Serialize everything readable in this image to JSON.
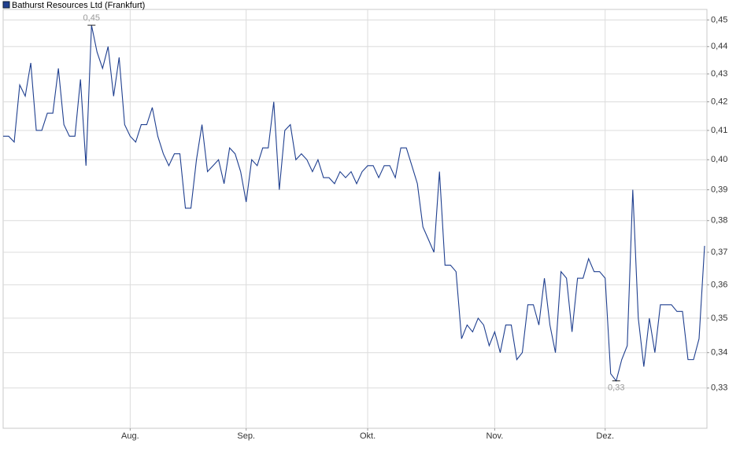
{
  "chart_data": {
    "type": "line",
    "categories": [
      null,
      null,
      null,
      null,
      null,
      null,
      null,
      null,
      null,
      null,
      null,
      null,
      null,
      null,
      null,
      null,
      null,
      null,
      null,
      null,
      null,
      null,
      null,
      "Aug.",
      null,
      null,
      null,
      null,
      null,
      null,
      null,
      null,
      null,
      null,
      null,
      null,
      null,
      null,
      null,
      null,
      null,
      null,
      null,
      null,
      "Sep.",
      null,
      null,
      null,
      null,
      null,
      null,
      null,
      null,
      null,
      null,
      null,
      null,
      null,
      null,
      null,
      null,
      null,
      null,
      null,
      null,
      null,
      "Okt.",
      null,
      null,
      null,
      null,
      null,
      null,
      null,
      null,
      null,
      null,
      null,
      null,
      null,
      null,
      null,
      null,
      null,
      null,
      null,
      null,
      null,
      null,
      "Nov.",
      null,
      null,
      null,
      null,
      null,
      null,
      null,
      null,
      null,
      null,
      null,
      null,
      null,
      null,
      null,
      null,
      null,
      null,
      null,
      "Dez.",
      null,
      null,
      null,
      null,
      null,
      null,
      null,
      null,
      null,
      null,
      null,
      null,
      null,
      null,
      null,
      null,
      null,
      null
    ],
    "series": [
      {
        "name": "Bathurst Resources Ltd (Frankfurt)",
        "color": "#1f3f8f",
        "values": [
          0.408,
          0.408,
          0.406,
          0.426,
          0.422,
          0.434,
          0.41,
          0.41,
          0.416,
          0.416,
          0.432,
          0.412,
          0.408,
          0.408,
          0.428,
          0.398,
          0.448,
          0.438,
          0.432,
          0.44,
          0.422,
          0.436,
          0.412,
          0.408,
          0.406,
          0.412,
          0.412,
          0.418,
          0.408,
          0.402,
          0.398,
          0.402,
          0.402,
          0.384,
          0.384,
          0.4,
          0.412,
          0.396,
          0.398,
          0.4,
          0.392,
          0.404,
          0.402,
          0.396,
          0.386,
          0.4,
          0.398,
          0.404,
          0.404,
          0.42,
          0.39,
          0.41,
          0.412,
          0.4,
          0.402,
          0.4,
          0.396,
          0.4,
          0.394,
          0.394,
          0.392,
          0.396,
          0.394,
          0.396,
          0.392,
          0.396,
          0.398,
          0.398,
          0.394,
          0.398,
          0.398,
          0.394,
          0.404,
          0.404,
          0.398,
          0.392,
          0.378,
          0.374,
          0.37,
          0.396,
          0.366,
          0.366,
          0.364,
          0.344,
          0.348,
          0.346,
          0.35,
          0.348,
          0.342,
          0.346,
          0.34,
          0.348,
          0.348,
          0.338,
          0.34,
          0.354,
          0.354,
          0.348,
          0.362,
          0.348,
          0.34,
          0.364,
          0.362,
          0.346,
          0.362,
          0.362,
          0.368,
          0.364,
          0.364,
          0.362,
          0.334,
          0.332,
          0.338,
          0.342,
          0.39,
          0.35,
          0.336,
          0.35,
          0.34,
          0.354,
          0.354,
          0.354,
          0.352,
          0.352,
          0.338,
          0.338,
          0.344,
          0.372
        ],
        "value_labels": [
          null,
          null,
          null,
          null,
          null,
          null,
          null,
          null,
          null,
          null,
          null,
          null,
          null,
          null,
          null,
          null,
          "0,45",
          null,
          null,
          null,
          null,
          null,
          null,
          null,
          null,
          null,
          null,
          null,
          null,
          null,
          null,
          null,
          null,
          null,
          null,
          null,
          null,
          null,
          null,
          null,
          null,
          null,
          null,
          null,
          null,
          null,
          null,
          null,
          null,
          null,
          null,
          null,
          null,
          null,
          null,
          null,
          null,
          null,
          null,
          null,
          null,
          null,
          null,
          null,
          null,
          null,
          null,
          null,
          null,
          null,
          null,
          null,
          null,
          null,
          null,
          null,
          null,
          null,
          null,
          null,
          null,
          null,
          null,
          null,
          null,
          null,
          null,
          null,
          null,
          null,
          null,
          null,
          null,
          null,
          null,
          null,
          null,
          null,
          null,
          null,
          null,
          null,
          null,
          null,
          null,
          null,
          null,
          null,
          null,
          null,
          null,
          "0,33",
          null,
          null,
          null,
          null,
          null,
          null,
          null,
          null,
          null,
          null,
          null,
          null,
          null,
          null,
          null,
          null
        ]
      }
    ],
    "ylim": [
      0.319,
      0.454
    ],
    "log_scale": true,
    "grid": true,
    "yticks": [
      {
        "value": 0.33,
        "label": "0,33"
      },
      {
        "value": 0.34,
        "label": "0,34"
      },
      {
        "value": 0.35,
        "label": "0,35"
      },
      {
        "value": 0.36,
        "label": "0,36"
      },
      {
        "value": 0.37,
        "label": "0,37"
      },
      {
        "value": 0.38,
        "label": "0,38"
      },
      {
        "value": 0.39,
        "label": "0,39"
      },
      {
        "value": 0.4,
        "label": "0,40"
      },
      {
        "value": 0.41,
        "label": "0,41"
      },
      {
        "value": 0.42,
        "label": "0,42"
      },
      {
        "value": 0.43,
        "label": "0,43"
      },
      {
        "value": 0.44,
        "label": "0,44"
      },
      {
        "value": 0.45,
        "label": "0,45"
      }
    ],
    "legend": "top-left"
  }
}
